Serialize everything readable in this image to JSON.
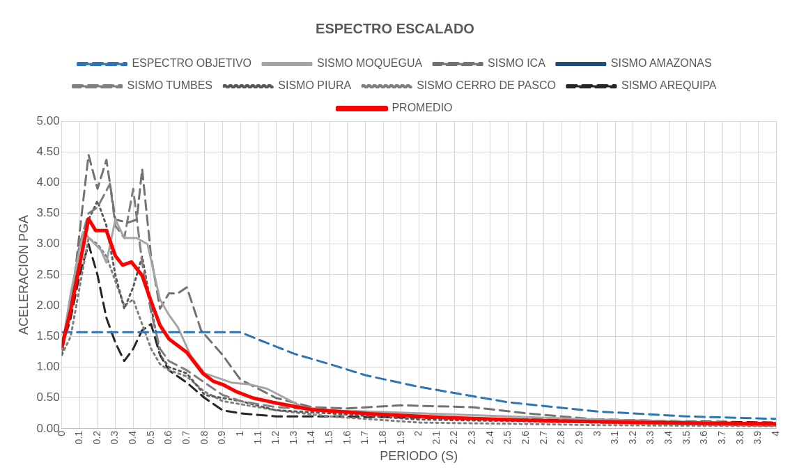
{
  "chart_data": {
    "type": "line",
    "title": "ESPECTRO ESCALADO",
    "xlabel": "PERIODO (S)",
    "ylabel": "ACELERACION PGA",
    "xlim": [
      0,
      4
    ],
    "xticks": [
      0,
      0.1,
      0.2,
      0.3,
      0.4,
      0.5,
      0.6,
      0.7,
      0.8,
      0.9,
      1,
      1.1,
      1.2,
      1.3,
      1.4,
      1.5,
      1.6,
      1.7,
      1.8,
      1.9,
      2,
      2.1,
      2.2,
      2.3,
      2.4,
      2.5,
      2.6,
      2.7,
      2.8,
      2.9,
      3,
      3.1,
      3.2,
      3.3,
      3.4,
      3.5,
      3.6,
      3.7,
      3.8,
      3.9,
      4
    ],
    "ylim": [
      0,
      5
    ],
    "yticks": [
      {
        "value": 0,
        "label": "0.00"
      },
      {
        "value": 0.5,
        "label": "0.50"
      },
      {
        "value": 1,
        "label": "1.00"
      },
      {
        "value": 1.5,
        "label": "1.50"
      },
      {
        "value": 2,
        "label": "2.00"
      },
      {
        "value": 2.5,
        "label": "2.50"
      },
      {
        "value": 3,
        "label": "3.00"
      },
      {
        "value": 3.5,
        "label": "3.50"
      },
      {
        "value": 4,
        "label": "4.00"
      },
      {
        "value": 4.5,
        "label": "4.50"
      },
      {
        "value": 5,
        "label": "5.00"
      }
    ],
    "grid": true,
    "legend": "top",
    "marker": "none",
    "series": [
      {
        "name": "ESPECTRO OBJETIVO",
        "color": "#2e75b6",
        "line_style": "dashed",
        "x": [
          0,
          0.5,
          1,
          1.1,
          1.3,
          1.5,
          1.7,
          2,
          2.5,
          3,
          3.5,
          4
        ],
        "values": [
          1.57,
          1.57,
          1.57,
          1.45,
          1.22,
          1.05,
          0.87,
          0.68,
          0.43,
          0.28,
          0.2,
          0.16
        ]
      },
      {
        "name": "SISMO MOQUEGUA",
        "color": "#a5a5a5",
        "line_style": "solid",
        "x": [
          0,
          0.05,
          0.12,
          0.22,
          0.25,
          0.3,
          0.35,
          0.42,
          0.48,
          0.55,
          0.6,
          0.65,
          0.72,
          0.8,
          0.95,
          1.05,
          1.15,
          1.25,
          1.35,
          1.5,
          2,
          3,
          4
        ],
        "values": [
          1.3,
          2.2,
          3.2,
          2.9,
          2.7,
          3.4,
          3.1,
          3.1,
          3.0,
          2.1,
          1.85,
          1.65,
          1.2,
          0.9,
          0.75,
          0.72,
          0.65,
          0.5,
          0.35,
          0.3,
          0.25,
          0.15,
          0.08
        ]
      },
      {
        "name": "SISMO ICA",
        "color": "#767171",
        "line_style": "dashed",
        "x": [
          0,
          0.05,
          0.1,
          0.15,
          0.2,
          0.25,
          0.3,
          0.37,
          0.42,
          0.45,
          0.5,
          0.55,
          0.6,
          0.65,
          0.7,
          0.78,
          0.9,
          1,
          1.2,
          1.4,
          1.6,
          1.9,
          2.3,
          2.6,
          3,
          3.5,
          4
        ],
        "values": [
          1.25,
          1.9,
          3.2,
          4.45,
          3.9,
          4.37,
          3.4,
          3.35,
          3.4,
          4.22,
          2.8,
          1.95,
          2.2,
          2.2,
          2.3,
          1.6,
          1.2,
          0.8,
          0.5,
          0.35,
          0.33,
          0.38,
          0.35,
          0.25,
          0.15,
          0.1,
          0.06
        ]
      },
      {
        "name": "SISMO AMAZONAS",
        "color": "#1f4e79",
        "line_style": "solid"
      },
      {
        "name": "SISMO TUMBES",
        "color": "#7f7f7f",
        "line_style": "dashed",
        "x": [
          0,
          0.05,
          0.1,
          0.15,
          0.2,
          0.27,
          0.3,
          0.35,
          0.4,
          0.45,
          0.5,
          0.55,
          0.6,
          0.7,
          0.8,
          0.9,
          1,
          1.2,
          1.5,
          2,
          3,
          4
        ],
        "values": [
          1.3,
          2.0,
          3.0,
          3.5,
          3.6,
          3.98,
          3.3,
          3.1,
          3.9,
          2.7,
          1.9,
          1.3,
          1.1,
          0.95,
          0.75,
          0.55,
          0.45,
          0.35,
          0.3,
          0.2,
          0.1,
          0.05
        ]
      },
      {
        "name": "SISMO PIURA",
        "color": "#595959",
        "line_style": "dotted",
        "x": [
          0,
          0.05,
          0.1,
          0.15,
          0.2,
          0.25,
          0.3,
          0.35,
          0.4,
          0.45,
          0.5,
          0.55,
          0.6,
          0.7,
          0.8,
          0.9,
          1,
          1.2,
          1.5,
          2,
          3,
          4
        ],
        "values": [
          1.2,
          2.0,
          3.0,
          3.4,
          3.7,
          3.3,
          2.5,
          1.95,
          2.3,
          2.8,
          2.0,
          1.2,
          1.0,
          0.9,
          0.55,
          0.5,
          0.45,
          0.3,
          0.25,
          0.15,
          0.1,
          0.05
        ]
      },
      {
        "name": "SISMO CERRO DE PASCO",
        "color": "#7f7f7f",
        "line_style": "dotted",
        "x": [
          0,
          0.05,
          0.1,
          0.15,
          0.2,
          0.25,
          0.3,
          0.35,
          0.4,
          0.45,
          0.5,
          0.55,
          0.6,
          0.7,
          0.8,
          0.9,
          1,
          1.2,
          1.5,
          2,
          2.5,
          3,
          4
        ],
        "values": [
          1.2,
          1.5,
          2.3,
          3.1,
          3.0,
          2.8,
          2.4,
          2.0,
          2.1,
          1.7,
          1.3,
          1.05,
          0.95,
          0.85,
          0.6,
          0.45,
          0.4,
          0.3,
          0.2,
          0.1,
          0.08,
          0.06,
          0.04
        ]
      },
      {
        "name": "SISMO AREQUIPA",
        "color": "#262626",
        "line_style": "dashed",
        "x": [
          0,
          0.05,
          0.1,
          0.15,
          0.2,
          0.25,
          0.3,
          0.35,
          0.4,
          0.45,
          0.5,
          0.55,
          0.6,
          0.7,
          0.8,
          0.9,
          1,
          1.2,
          1.5,
          2,
          2.5,
          3,
          3.5,
          4
        ],
        "values": [
          1.3,
          1.8,
          2.5,
          3.0,
          2.5,
          1.8,
          1.4,
          1.1,
          1.3,
          1.6,
          1.7,
          1.2,
          0.95,
          0.75,
          0.5,
          0.3,
          0.25,
          0.2,
          0.2,
          0.18,
          0.15,
          0.15,
          0.12,
          0.1
        ]
      },
      {
        "name": "PROMEDIO",
        "color": "#ff0000",
        "line_style": "solid",
        "x": [
          0,
          0.05,
          0.08,
          0.15,
          0.19,
          0.25,
          0.3,
          0.34,
          0.39,
          0.45,
          0.5,
          0.55,
          0.6,
          0.7,
          0.79,
          0.85,
          0.9,
          0.98,
          1.07,
          1.18,
          1.4,
          1.74,
          2.16,
          2.7,
          3.3,
          4
        ],
        "values": [
          1.34,
          1.93,
          2.37,
          3.41,
          3.22,
          3.22,
          2.81,
          2.66,
          2.71,
          2.49,
          2.07,
          1.68,
          1.46,
          1.24,
          0.9,
          0.77,
          0.72,
          0.6,
          0.5,
          0.43,
          0.31,
          0.24,
          0.18,
          0.13,
          0.1,
          0.08
        ]
      }
    ]
  }
}
